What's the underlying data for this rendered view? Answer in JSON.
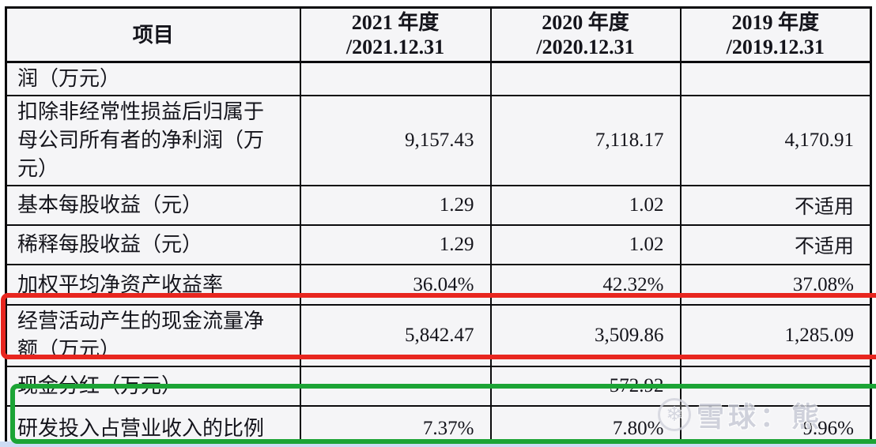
{
  "page": {
    "background": "#ffffff",
    "bottom_strip_color": "#cddcf4"
  },
  "table": {
    "header": {
      "item_label": "项目",
      "years": [
        {
          "line1": "2021 年度",
          "line2": "/2021.12.31"
        },
        {
          "line1": "2020 年度",
          "line2": "/2020.12.31"
        },
        {
          "line1": "2019 年度",
          "line2": "/2019.12.31"
        }
      ]
    },
    "rows": [
      {
        "label": "润（万元）",
        "values": [
          "",
          "",
          ""
        ]
      },
      {
        "label": "扣除非经常性损益后归属于母公司所有者的净利润（万元）",
        "values": [
          "9,157.43",
          "7,118.17",
          "4,170.91"
        ]
      },
      {
        "label": "基本每股收益（元）",
        "values": [
          "1.29",
          "1.02",
          "不适用"
        ]
      },
      {
        "label": "稀释每股收益（元）",
        "values": [
          "1.29",
          "1.02",
          "不适用"
        ]
      },
      {
        "label": "加权平均净资产收益率",
        "values": [
          "36.04%",
          "42.32%",
          "37.08%"
        ]
      },
      {
        "label": "经营活动产生的现金流量净额（万元）",
        "values": [
          "5,842.47",
          "3,509.86",
          "1,285.09"
        ],
        "highlight": "red"
      },
      {
        "label": "现金分红（万元）",
        "values": [
          "-",
          "572.92",
          "-"
        ]
      },
      {
        "label": "研发投入占营业收入的比例",
        "values": [
          "7.37%",
          "7.80%",
          "9.96%"
        ],
        "highlight": "green"
      }
    ]
  },
  "annotations": {
    "red_box_color": "#e8261f",
    "green_box_color": "#1ca435"
  },
  "watermark": {
    "logo": "snowflake-icon",
    "text": "雪球：熊"
  }
}
